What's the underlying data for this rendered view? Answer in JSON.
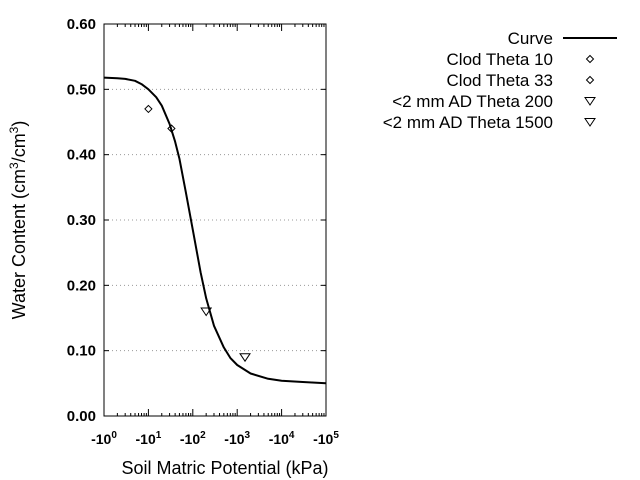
{
  "chart_data": {
    "type": "scatter",
    "x_scale": "log",
    "x_tick_bases": [
      "-10",
      "-10",
      "-10",
      "-10",
      "-10",
      "-10"
    ],
    "x_tick_exponents": [
      "0",
      "1",
      "2",
      "3",
      "4",
      "5"
    ],
    "xlim": [
      1,
      100000
    ],
    "ylim": [
      0,
      0.6
    ],
    "y_ticks": [
      0,
      0.1,
      0.2,
      0.3,
      0.4,
      0.5,
      0.6
    ],
    "y_tick_labels": [
      "0.00",
      "0.10",
      "0.20",
      "0.30",
      "0.40",
      "0.50",
      "0.60"
    ],
    "grid": "y-dotted",
    "legend_position": "top-right",
    "xlabel": "Soil Matric Potential (kPa)",
    "ylabel": {
      "prefix": "Water Content (cm",
      "sup1": "3",
      "middle": "/cm",
      "sup2": "3",
      "suffix": ")"
    },
    "curve": {
      "name": "Curve",
      "x": [
        1,
        2,
        3,
        5,
        7,
        10,
        15,
        20,
        30,
        40,
        50,
        70,
        100,
        150,
        200,
        300,
        500,
        700,
        1000,
        2000,
        5000,
        10000,
        30000,
        100000
      ],
      "y": [
        0.518,
        0.517,
        0.516,
        0.513,
        0.508,
        0.5,
        0.488,
        0.475,
        0.447,
        0.42,
        0.394,
        0.342,
        0.285,
        0.22,
        0.18,
        0.138,
        0.105,
        0.089,
        0.078,
        0.065,
        0.057,
        0.054,
        0.052,
        0.05
      ]
    },
    "series": [
      {
        "name": "Clod Theta 10",
        "marker": "diamond",
        "x": [
          10
        ],
        "y": [
          0.47
        ]
      },
      {
        "name": "Clod Theta 33",
        "marker": "diamond",
        "x": [
          33
        ],
        "y": [
          0.44
        ]
      },
      {
        "name": "<2 mm AD Theta 200",
        "marker": "triangle-down",
        "x": [
          200
        ],
        "y": [
          0.16
        ]
      },
      {
        "name": "<2 mm AD Theta 1500",
        "marker": "triangle-down",
        "x": [
          1500
        ],
        "y": [
          0.09
        ]
      }
    ]
  }
}
